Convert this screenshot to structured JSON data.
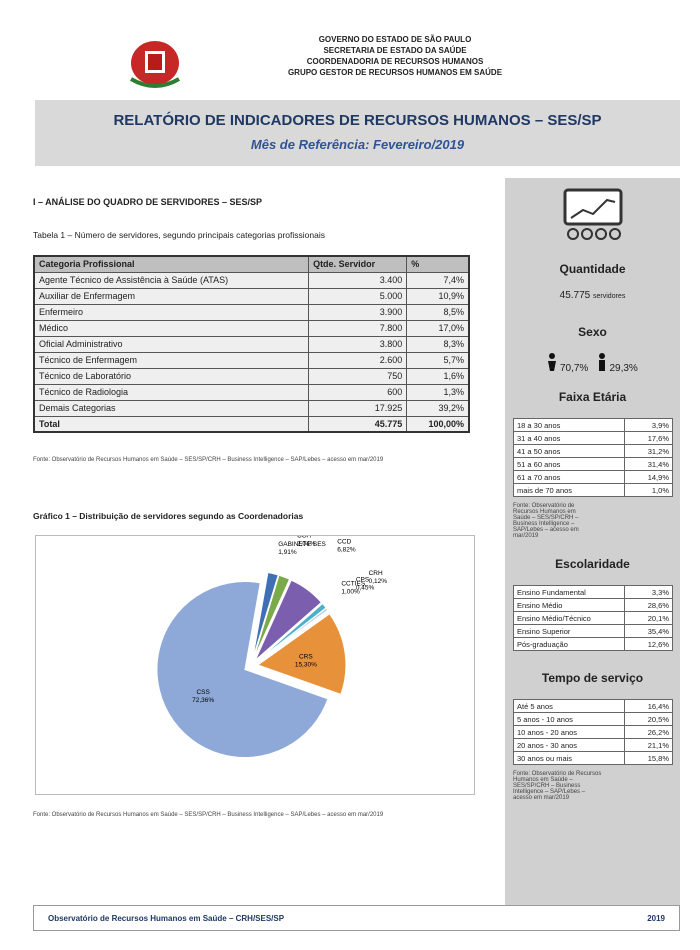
{
  "header": {
    "lines": [
      "GOVERNO DO ESTADO DE SÃO PAULO",
      "SECRETARIA DE ESTADO DA SAÚDE",
      "COORDENADORIA DE RECURSOS HUMANOS",
      "GRUPO GESTOR DE RECURSOS HUMANOS EM SAÚDE"
    ],
    "title": "RELATÓRIO DE INDICADORES DE RECURSOS HUMANOS – SES/SP",
    "subtitle": "Mês de Referência: Fevereiro/2019"
  },
  "section": "I – ANÁLISE DO QUADRO DE SERVIDORES – SES/SP",
  "table": {
    "caption": "Tabela 1 – Número de servidores, segundo principais categorias profissionais",
    "header": [
      "Categoria Profissional",
      "Qtde. Servidor",
      "%"
    ],
    "rows": [
      [
        "Agente Técnico de Assistência à Saúde (ATAS)",
        "3.400",
        "7,4%"
      ],
      [
        "Auxiliar de Enfermagem",
        "5.000",
        "10,9%"
      ],
      [
        "Enfermeiro",
        "3.900",
        "8,5%"
      ],
      [
        "Médico",
        "7.800",
        "17,0%"
      ],
      [
        "Oficial Administrativo",
        "3.800",
        "8,3%"
      ],
      [
        "Técnico de Enfermagem",
        "2.600",
        "5,7%"
      ],
      [
        "Técnico de Laboratório",
        "750",
        "1,6%"
      ],
      [
        "Técnico de Radiologia",
        "600",
        "1,3%"
      ],
      [
        "Demais Categorias",
        "17.925",
        "39,2%"
      ],
      [
        "Total",
        "45.775",
        "100,00%"
      ]
    ],
    "source": "Fonte: Observatório de Recursos Humanos em Saúde – SES/SP/CRH – Business Intelligence – SAP/Lebes – acesso em mar/2019"
  },
  "chart_data": {
    "type": "pie",
    "title": "Gráfico 1 – Distribuição de servidores segundo as Coordenadorias",
    "categories": [
      "GABINETE SES",
      "CGA",
      "CCD",
      "CCTIES",
      "CPS",
      "CRH",
      "CRS",
      "CSS"
    ],
    "values": [
      1.91,
      2.04,
      6.82,
      1.0,
      0.45,
      0.12,
      15.3,
      72.36
    ],
    "value_labels": [
      "1,91%",
      "2,04%",
      "6,82%",
      "1,00%",
      "0,45%",
      "0,12%",
      "15,30%",
      "72,36%"
    ],
    "colors": [
      "#3f6fb5",
      "#7aaa4a",
      "#7b5fae",
      "#4bb0c8",
      "#b0c8e8",
      "#f0c28a",
      "#e8913b",
      "#8ea9d8"
    ],
    "source": "Fonte: Observatório de Recursos Humanos em Saúde – SES/SP/CRH – Business Intelligence – SAP/Lebes – acesso em mar/2019"
  },
  "sidebar": {
    "quantity": {
      "title": "Quantidade",
      "value": "45.775",
      "unit": "servidores"
    },
    "sex": {
      "title": "Sexo",
      "female": "70,7%",
      "male": "29,3%"
    },
    "age": {
      "title": "Faixa Etária",
      "rows": [
        [
          "18 a 30 anos",
          "3,9%"
        ],
        [
          "31 a 40 anos",
          "17,6%"
        ],
        [
          "41 a 50 anos",
          "31,2%"
        ],
        [
          "51 a 60 anos",
          "31,4%"
        ],
        [
          "61 a 70 anos",
          "14,9%"
        ],
        [
          "mais de 70 anos",
          "1,0%"
        ]
      ],
      "source": "Fonte: Observatório de Recursos Humanos em Saúde – SES/SP/CRH – Business Intelligence – SAP/Lebes – acesso em mar/2019"
    },
    "education": {
      "title": "Escolaridade",
      "rows": [
        [
          "Ensino Fundamental",
          "3,3%"
        ],
        [
          "Ensino Médio",
          "28,6%"
        ],
        [
          "Ensino Médio/Técnico",
          "20,1%"
        ],
        [
          "Ensino Superior",
          "35,4%"
        ],
        [
          "Pós-graduação",
          "12,6%"
        ]
      ]
    },
    "service": {
      "title": "Tempo de serviço",
      "rows": [
        [
          "Até 5 anos",
          "16,4%"
        ],
        [
          "5 anos - 10 anos",
          "20,5%"
        ],
        [
          "10 anos - 20 anos",
          "26,2%"
        ],
        [
          "20 anos - 30 anos",
          "21,1%"
        ],
        [
          "30 anos ou mais",
          "15,8%"
        ]
      ],
      "source": "Fonte: Observatório de Recursos Humanos em Saúde – SES/SP/CRH – Business Intelligence – SAP/Lebes – acesso em mar/2019"
    }
  },
  "footer": {
    "left": "Observatório de Recursos Humanos em Saúde – CRH/SES/SP",
    "right": "2019"
  }
}
